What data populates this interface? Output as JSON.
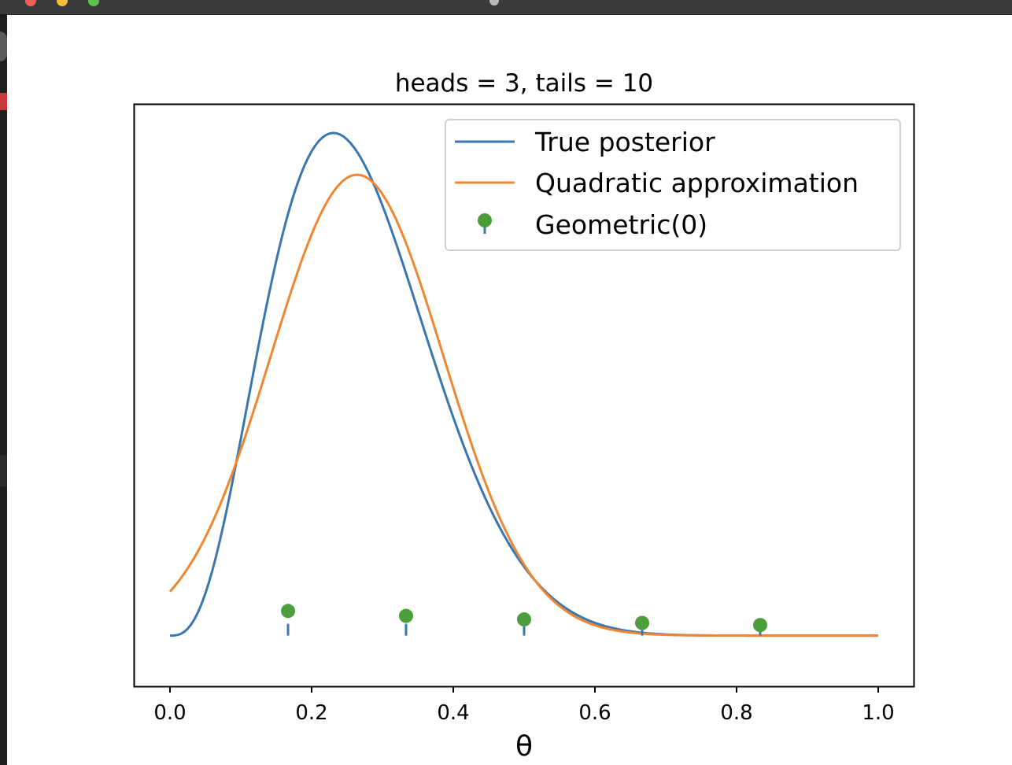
{
  "window": {
    "controls": [
      "close-button",
      "minimize-button",
      "zoom-button"
    ]
  },
  "chart_data": {
    "type": "line",
    "title": "heads = 3, tails = 10",
    "xlabel": "θ",
    "ylabel": "",
    "xlim": [
      -0.05,
      1.05
    ],
    "ylim": [
      -0.36,
      3.77
    ],
    "x_ticks": [
      "0.0",
      "0.2",
      "0.4",
      "0.6",
      "0.8",
      "1.0"
    ],
    "y_ticks_visible": false,
    "legend_position": "top-right",
    "series": [
      {
        "name": "True posterior",
        "type": "line",
        "color": "#3a76b0",
        "model": "beta-density",
        "alpha": 4,
        "beta": 11,
        "x_range": [
          0,
          1
        ]
      },
      {
        "name": "Quadratic approximation",
        "type": "line",
        "color": "#ee8632",
        "model": "normal-density",
        "mean": 0.2642,
        "sd": 0.1219,
        "x_range": [
          0,
          1
        ]
      },
      {
        "name": "Geometric(0)",
        "type": "stem",
        "marker_color": "#4b9e3b",
        "stem_color": "#3a76b0",
        "x": [
          0.1667,
          0.3333,
          0.5,
          0.6667,
          0.8333
        ],
        "y": [
          0.175,
          0.14,
          0.115,
          0.09,
          0.075
        ]
      }
    ]
  }
}
